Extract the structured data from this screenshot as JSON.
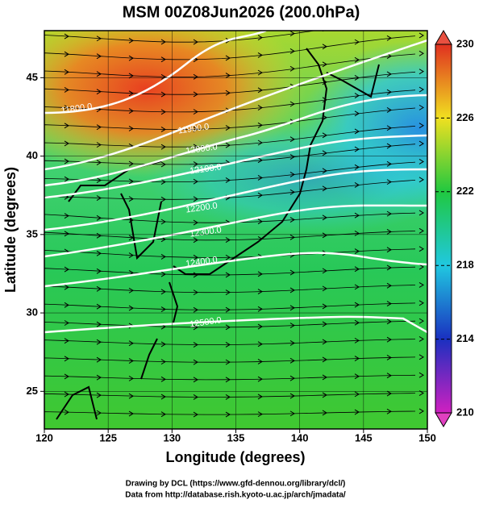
{
  "chart_data": {
    "type": "map",
    "title": "MSM 00Z08Jun2026 (200.0hPa)",
    "x_label": "Longitude (degrees)",
    "y_label": "Latitude  (degrees)",
    "xlim": [
      120,
      150
    ],
    "xticks": [
      120,
      125,
      130,
      135,
      140,
      145,
      150
    ],
    "ylim": [
      22.6,
      48.0
    ],
    "yticks": [
      25,
      30,
      35,
      40,
      45
    ],
    "grid": true,
    "colorbar": {
      "lim": [
        210,
        230
      ],
      "ticks": [
        210,
        214,
        218,
        222,
        226,
        230
      ],
      "colors": [
        "#d020c0",
        "#1a30c0",
        "#20c8e0",
        "#20c840",
        "#f0e020",
        "#e03020"
      ]
    },
    "contours": [
      {
        "value": 11800,
        "label": "11800.0"
      },
      {
        "value": 11900,
        "label": "11900.0"
      },
      {
        "value": 12000,
        "label": "12000.0"
      },
      {
        "value": 12100,
        "label": "12100.0"
      },
      {
        "value": 12200,
        "label": "12200.0"
      },
      {
        "value": 12300,
        "label": "12300.0"
      },
      {
        "value": 12400,
        "label": "12400.0"
      },
      {
        "value": 12500,
        "label": "12500.0"
      }
    ],
    "credits": [
      "Drawing by DCL (https://www.gfd-dennou.org/library/dcl/)",
      "Data from http://database.rish.kyoto-u.ac.jp/arch/jmadata/"
    ]
  }
}
